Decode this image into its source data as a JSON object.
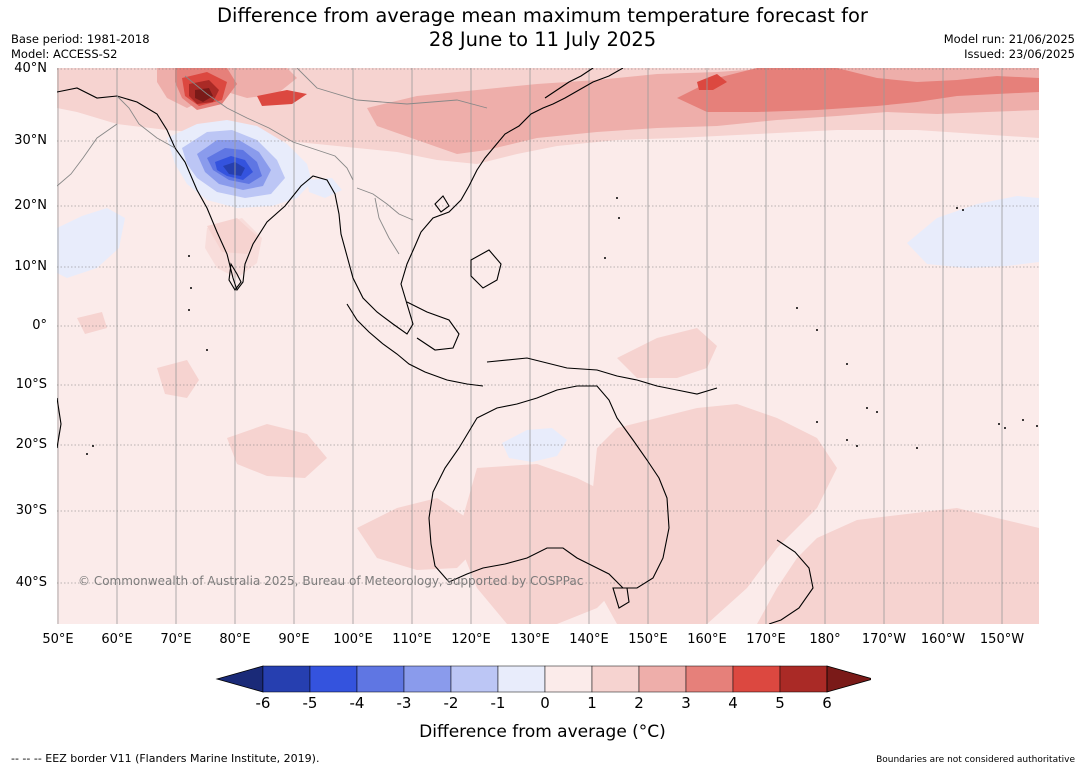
{
  "title": "Difference from average mean maximum temperature forecast for\n28 June to 11 July 2025",
  "meta_left": {
    "base_period": "Base period: 1981-2018",
    "model": "Model: ACCESS-S2"
  },
  "meta_right": {
    "model_run": "Model run: 21/06/2025",
    "issued": "Issued: 23/06/2025"
  },
  "lat_labels": [
    "40°N",
    "30°N",
    "20°N",
    "10°N",
    "0°",
    "10°S",
    "20°S",
    "30°S",
    "40°S"
  ],
  "lon_labels": [
    "50°E",
    "60°E",
    "70°E",
    "80°E",
    "90°E",
    "100°E",
    "110°E",
    "120°E",
    "130°E",
    "140°E",
    "150°E",
    "160°E",
    "170°E",
    "180°",
    "170°W",
    "160°W",
    "150°W"
  ],
  "copyright": "© Commonwealth of Australia 2025, Bureau of Meteorology, supported by COSPPac",
  "colorbar": {
    "ticks": [
      "-6",
      "-5",
      "-4",
      "-3",
      "-2",
      "-1",
      "0",
      "1",
      "2",
      "3",
      "4",
      "5",
      "6"
    ],
    "colors": [
      "#1a2a78",
      "#263fb0",
      "#3453de",
      "#5f76e3",
      "#8a9bec",
      "#bcc6f5",
      "#e8ecfb",
      "#fbebea",
      "#f6d3d0",
      "#eeaeaa",
      "#e6807a",
      "#dc4840",
      "#aa2a26",
      "#7a1a18"
    ],
    "label": "Difference from average (°C)"
  },
  "footer_left": "--  --  -- EEZ border V11 (Flanders Marine Institute, 2019).",
  "footer_right": "Boundaries are not considered authoritative"
}
